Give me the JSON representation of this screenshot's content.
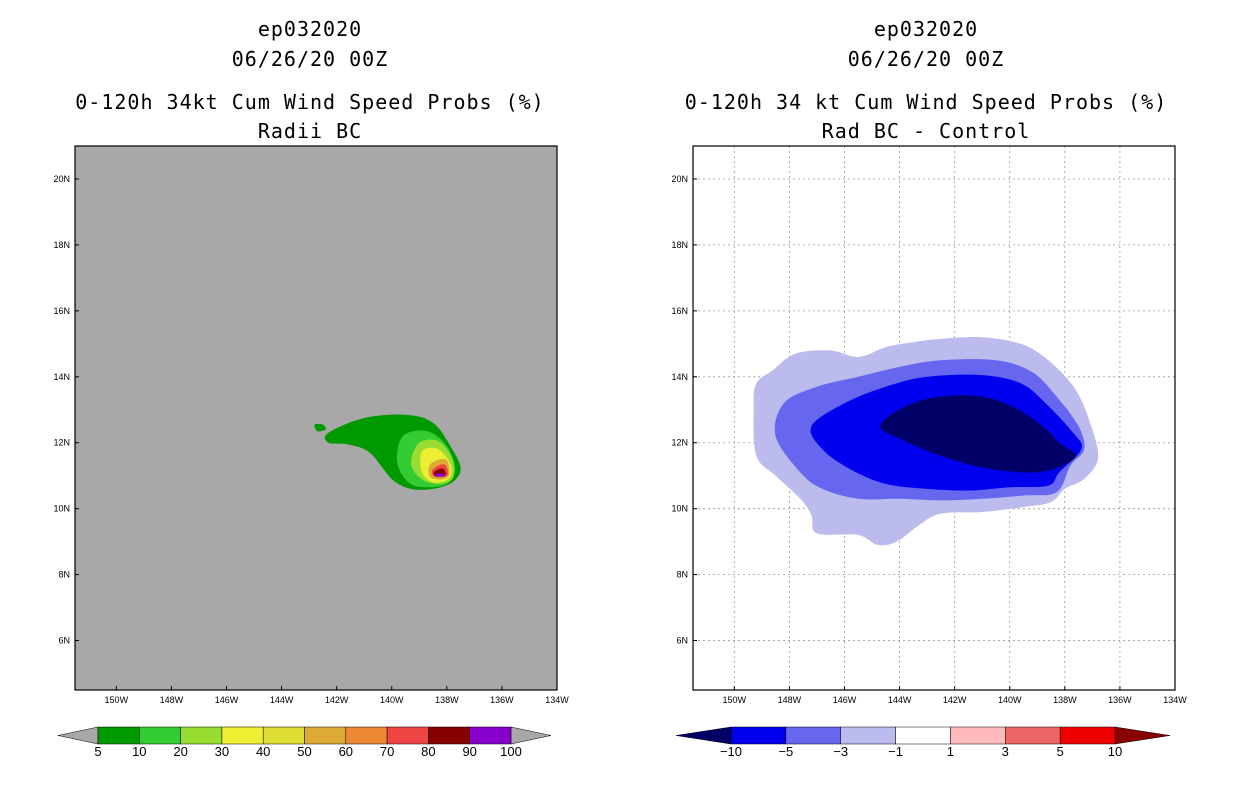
{
  "chart_data": [
    {
      "type": "heatmap",
      "storm_id": "ep032020",
      "datetime": "06/26/20 00Z",
      "title": "0-120h 34kt Cum Wind Speed Probs (%)",
      "subtitle": "Radii BC",
      "x_ticks": [
        "150W",
        "148W",
        "146W",
        "144W",
        "142W",
        "140W",
        "138W",
        "136W",
        "134W"
      ],
      "y_ticks": [
        "20N",
        "18N",
        "16N",
        "14N",
        "12N",
        "10N",
        "8N",
        "6N"
      ],
      "xlim": [
        -151.5,
        -134
      ],
      "ylim": [
        4.5,
        21
      ],
      "background_color": "#a8a8a8",
      "levels": [
        5,
        10,
        20,
        30,
        40,
        50,
        60,
        70,
        80,
        90,
        100
      ],
      "level_labels": [
        "5",
        "10",
        "20",
        "30",
        "40",
        "50",
        "60",
        "70",
        "80",
        "90",
        "100"
      ],
      "colors": [
        "#009900",
        "#33cc33",
        "#99dd33",
        "#eeee33",
        "#dddd33",
        "#ddaa33",
        "#ee8833",
        "#ee4444",
        "#880000",
        "#8800cc"
      ],
      "contours": [
        {
          "level": 5,
          "color": "#009900",
          "points": [
            [
              -142.3,
              12.3
            ],
            [
              -141,
              12.75
            ],
            [
              -139.5,
              12.85
            ],
            [
              -138.5,
              12.6
            ],
            [
              -137.8,
              11.8
            ],
            [
              -137.5,
              11.2
            ],
            [
              -137.8,
              10.8
            ],
            [
              -138.5,
              10.6
            ],
            [
              -139.3,
              10.6
            ],
            [
              -140,
              10.9
            ],
            [
              -140.8,
              11.7
            ],
            [
              -141.6,
              11.95
            ],
            [
              -142.3,
              12
            ]
          ]
        },
        {
          "level": 10,
          "color": "#33cc33",
          "points": [
            [
              -139.6,
              12.2
            ],
            [
              -138.7,
              12.35
            ],
            [
              -138,
              11.9
            ],
            [
              -137.7,
              11.2
            ],
            [
              -138,
              10.75
            ],
            [
              -138.8,
              10.65
            ],
            [
              -139.4,
              10.8
            ],
            [
              -139.8,
              11.4
            ]
          ]
        },
        {
          "level": 20,
          "color": "#99dd33",
          "points": [
            [
              -139,
              12
            ],
            [
              -138.3,
              12.05
            ],
            [
              -137.8,
              11.5
            ],
            [
              -137.8,
              10.9
            ],
            [
              -138.4,
              10.75
            ],
            [
              -139,
              10.95
            ],
            [
              -139.3,
              11.4
            ]
          ]
        },
        {
          "level": 30,
          "color": "#eeee33",
          "points": [
            [
              -138.9,
              11.75
            ],
            [
              -138.3,
              11.8
            ],
            [
              -137.85,
              11.3
            ],
            [
              -137.95,
              10.9
            ],
            [
              -138.5,
              10.8
            ],
            [
              -138.9,
              11.1
            ]
          ]
        },
        {
          "level": 50,
          "color": "#ddaa33",
          "points": [
            [
              -138.6,
              11.35
            ],
            [
              -138.05,
              11.5
            ],
            [
              -137.9,
              11.1
            ],
            [
              -138.1,
              10.9
            ],
            [
              -138.6,
              10.95
            ]
          ]
        },
        {
          "level": 70,
          "color": "#ee4444",
          "points": [
            [
              -138.5,
              11.2
            ],
            [
              -138.1,
              11.35
            ],
            [
              -137.95,
              11.05
            ],
            [
              -138.2,
              10.95
            ],
            [
              -138.5,
              11
            ]
          ]
        },
        {
          "level": 80,
          "color": "#880000",
          "points": [
            [
              -138.45,
              11.12
            ],
            [
              -138.15,
              11.22
            ],
            [
              -138.05,
              11.02
            ],
            [
              -138.4,
              10.98
            ]
          ]
        },
        {
          "level": 90,
          "color": "#8800cc",
          "points": [
            [
              -138.4,
              11.05
            ],
            [
              -138.1,
              11.05
            ],
            [
              -138.1,
              10.98
            ],
            [
              -138.4,
              10.98
            ]
          ]
        },
        {
          "level": 5,
          "color": "#009900",
          "points": [
            [
              -142.8,
              12.55
            ],
            [
              -142.5,
              12.55
            ],
            [
              -142.4,
              12.4
            ],
            [
              -142.7,
              12.35
            ]
          ]
        }
      ]
    },
    {
      "type": "heatmap",
      "storm_id": "ep032020",
      "datetime": "06/26/20 00Z",
      "title": "0-120h 34 kt Cum Wind Speed Probs (%)",
      "subtitle": "Rad BC - Control",
      "x_ticks": [
        "150W",
        "148W",
        "146W",
        "144W",
        "142W",
        "140W",
        "138W",
        "136W",
        "134W"
      ],
      "y_ticks": [
        "20N",
        "18N",
        "16N",
        "14N",
        "12N",
        "10N",
        "8N",
        "6N"
      ],
      "xlim": [
        -151.5,
        -134
      ],
      "ylim": [
        4.5,
        21
      ],
      "grid": true,
      "background_color": "#ffffff",
      "levels": [
        -10,
        -5,
        -3,
        -1,
        1,
        3,
        5,
        10
      ],
      "level_labels": [
        "-10",
        "-5",
        "-3",
        "-1",
        "1",
        "3",
        "5",
        "10"
      ],
      "colors": [
        "#000066",
        "#0000ee",
        "#6666ee",
        "#bbbbee",
        "#ffffff",
        "#ffbbbb",
        "#ee6666",
        "#ee0000",
        "#880000"
      ],
      "contours": [
        {
          "level": -1,
          "color": "#bbbbee",
          "points": [
            [
              -149.3,
              13
            ],
            [
              -149.2,
              13.8
            ],
            [
              -148.6,
              14.2
            ],
            [
              -147.8,
              14.7
            ],
            [
              -146.5,
              14.8
            ],
            [
              -145.5,
              14.6
            ],
            [
              -144.5,
              14.9
            ],
            [
              -143.5,
              15.05
            ],
            [
              -142.5,
              15.15
            ],
            [
              -141,
              15.2
            ],
            [
              -139.6,
              15
            ],
            [
              -138.6,
              14.5
            ],
            [
              -137.6,
              13.6
            ],
            [
              -137,
              12.4
            ],
            [
              -136.8,
              11.5
            ],
            [
              -137.3,
              10.9
            ],
            [
              -138,
              10.6
            ],
            [
              -138.5,
              10.2
            ],
            [
              -139.5,
              10.05
            ],
            [
              -141,
              9.9
            ],
            [
              -142.5,
              9.85
            ],
            [
              -143.3,
              9.5
            ],
            [
              -144.1,
              9
            ],
            [
              -144.8,
              8.9
            ],
            [
              -145.5,
              9.2
            ],
            [
              -147,
              9.25
            ],
            [
              -147.2,
              9.8
            ],
            [
              -147.6,
              10.3
            ],
            [
              -148.5,
              11
            ],
            [
              -149.2,
              11.6
            ]
          ]
        },
        {
          "level": -3,
          "color": "#6666ee",
          "points": [
            [
              -148.5,
              12.2
            ],
            [
              -148.2,
              13.2
            ],
            [
              -147,
              13.7
            ],
            [
              -145.5,
              14
            ],
            [
              -144,
              14.3
            ],
            [
              -142.5,
              14.5
            ],
            [
              -140.5,
              14.5
            ],
            [
              -139.2,
              14.15
            ],
            [
              -138.3,
              13.4
            ],
            [
              -137.5,
              12.5
            ],
            [
              -137.3,
              11.8
            ],
            [
              -137.8,
              11.3
            ],
            [
              -138.3,
              10.5
            ],
            [
              -139.5,
              10.4
            ],
            [
              -141,
              10.3
            ],
            [
              -142.5,
              10.25
            ],
            [
              -144,
              10.3
            ],
            [
              -145.5,
              10.3
            ],
            [
              -146.8,
              10.6
            ],
            [
              -147.6,
              11.1
            ]
          ]
        },
        {
          "level": -5,
          "color": "#0000ee",
          "points": [
            [
              -147.2,
              12.5
            ],
            [
              -146,
              13.2
            ],
            [
              -144.5,
              13.7
            ],
            [
              -143,
              14
            ],
            [
              -141,
              14.05
            ],
            [
              -139.6,
              13.8
            ],
            [
              -138.7,
              13.2
            ],
            [
              -137.7,
              12.3
            ],
            [
              -137.4,
              11.8
            ],
            [
              -138.2,
              11.1
            ],
            [
              -138.6,
              10.7
            ],
            [
              -140,
              10.65
            ],
            [
              -141.5,
              10.55
            ],
            [
              -143,
              10.6
            ],
            [
              -144.5,
              10.75
            ],
            [
              -145.8,
              11.2
            ],
            [
              -146.8,
              11.8
            ]
          ]
        },
        {
          "level": -10,
          "color": "#000066",
          "points": [
            [
              -144.7,
              12.5
            ],
            [
              -143.8,
              13.1
            ],
            [
              -142.5,
              13.4
            ],
            [
              -141,
              13.4
            ],
            [
              -139.8,
              13.05
            ],
            [
              -138.8,
              12.5
            ],
            [
              -138.2,
              12
            ],
            [
              -137.6,
              11.6
            ],
            [
              -138.4,
              11.2
            ],
            [
              -139.5,
              11.1
            ],
            [
              -141,
              11.25
            ],
            [
              -142.5,
              11.6
            ],
            [
              -143.8,
              12.05
            ]
          ]
        }
      ]
    }
  ]
}
